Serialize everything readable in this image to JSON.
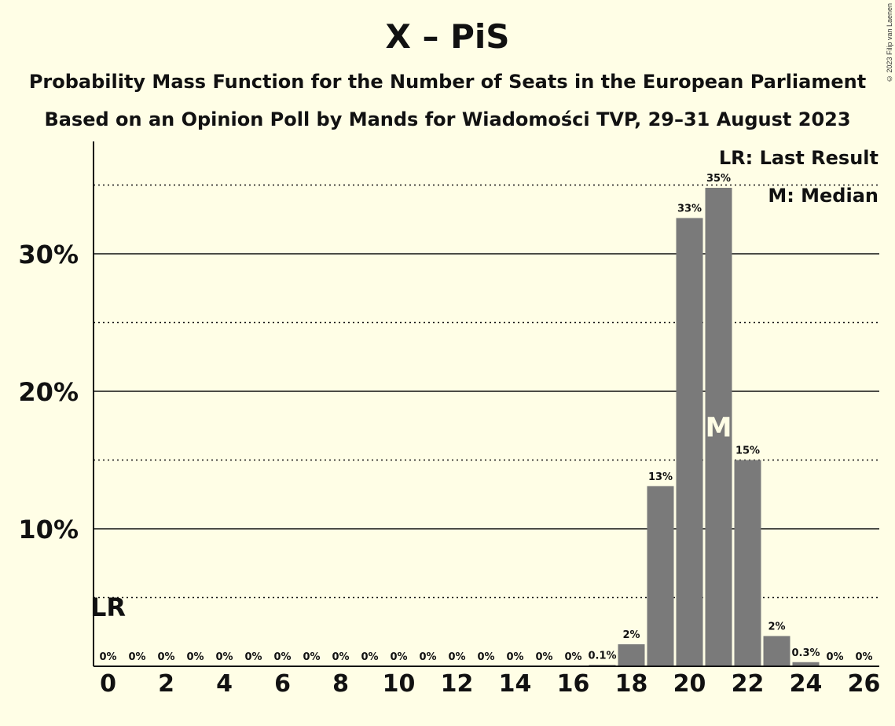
{
  "header": {
    "title": "X – PiS",
    "subtitle1": "Probability Mass Function for the Number of Seats in the European Parliament",
    "subtitle2": "Based on an Opinion Poll by Mands for Wiadomości TVP, 29–31 August 2023",
    "copyright": "© 2023 Filip van Laenen"
  },
  "legend": {
    "lr": "LR: Last Result",
    "m": "M: Median"
  },
  "colors": {
    "background": "#FFFEE6",
    "bar": "#7A7A7A",
    "text": "#111111"
  },
  "chart_data": {
    "type": "bar",
    "x": [
      0,
      1,
      2,
      3,
      4,
      5,
      6,
      7,
      8,
      9,
      10,
      11,
      12,
      13,
      14,
      15,
      16,
      17,
      18,
      19,
      20,
      21,
      22,
      23,
      24,
      25,
      26
    ],
    "values": [
      0,
      0,
      0,
      0,
      0,
      0,
      0,
      0,
      0,
      0,
      0,
      0,
      0,
      0,
      0,
      0,
      0,
      0.1,
      1.6,
      13.1,
      32.6,
      34.8,
      15.0,
      2.2,
      0.3,
      0,
      0
    ],
    "data_labels": [
      "0%",
      "0%",
      "0%",
      "0%",
      "0%",
      "0%",
      "0%",
      "0%",
      "0%",
      "0%",
      "0%",
      "0%",
      "0%",
      "0%",
      "0%",
      "0%",
      "0%",
      "0.1%",
      "2%",
      "13%",
      "33%",
      "35%",
      "15%",
      "2%",
      "0.3%",
      "0%",
      "0%"
    ],
    "x_tick_labels": [
      "0",
      "2",
      "4",
      "6",
      "8",
      "10",
      "12",
      "14",
      "16",
      "18",
      "20",
      "22",
      "24",
      "26"
    ],
    "x_tick_values": [
      0,
      2,
      4,
      6,
      8,
      10,
      12,
      14,
      16,
      18,
      20,
      22,
      24,
      26
    ],
    "y_tick_labels": [
      "10%",
      "20%",
      "30%"
    ],
    "y_tick_values": [
      10,
      20,
      30
    ],
    "y_dotted_values": [
      5,
      15,
      25,
      35
    ],
    "ylim": [
      0,
      38
    ],
    "xlim": [
      -0.5,
      26.5
    ],
    "grid": true,
    "last_result": {
      "x": 0,
      "label": "LR"
    },
    "median": {
      "x": 21,
      "label": "M"
    }
  }
}
